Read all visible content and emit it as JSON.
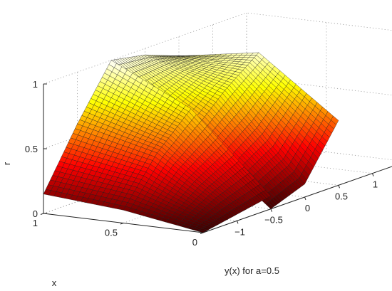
{
  "chart_data": {
    "type": "surface",
    "zlabel": "r",
    "xlabel": "x",
    "ylabel": "y(x) for a=0.5",
    "x_ticks": [
      "0",
      "0.5",
      "1"
    ],
    "y_ticks": [
      "−1",
      "−0.5",
      "0",
      "0.5",
      "1"
    ],
    "z_ticks": [
      "0",
      "0.5",
      "1"
    ],
    "xlim": [
      0,
      1
    ],
    "ylim": [
      -1.5,
      1.5
    ],
    "zlim": [
      0,
      1
    ],
    "grid": true,
    "colormap": "hot",
    "a": 0.5,
    "surfaces": [
      {
        "name": "",
        "x_range": [
          0,
          1
        ],
        "y_range": [
          -1.5,
          -0.5
        ],
        "r_values": [
          [
            0,
            0.05,
            0.1
          ],
          [
            0.1,
            0.45,
            0.7
          ],
          [
            0.15,
            0.6,
            1.0
          ]
        ]
      },
      {
        "name": "",
        "x_range": [
          0,
          1
        ],
        "y_range": [
          -0.5,
          0.5
        ],
        "r_values": [
          [
            0,
            0.1,
            0.5
          ],
          [
            0.5,
            0.75,
            0.95
          ],
          [
            1.0,
            0.95,
            0.85
          ]
        ]
      }
    ]
  }
}
